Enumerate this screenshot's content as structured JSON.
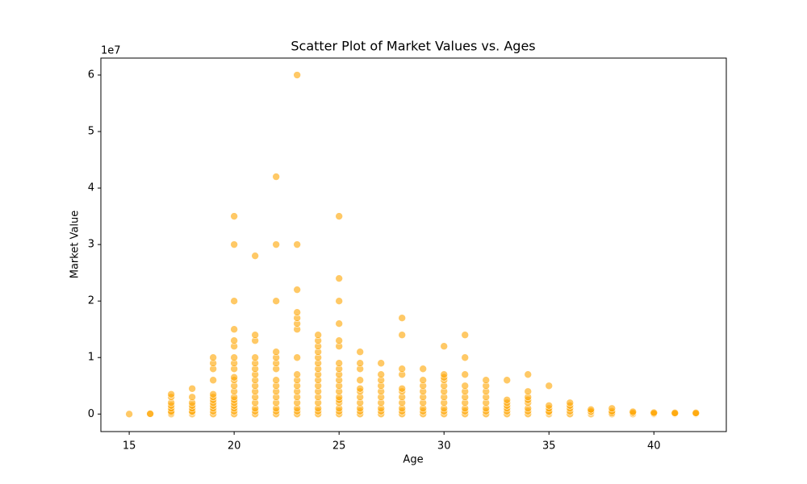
{
  "chart_data": {
    "type": "scatter",
    "title": "Scatter Plot of Market Values vs. Ages",
    "x_label": "Age",
    "y_label": "Market Value",
    "y_offset_label": "1e7",
    "color": "#FFA500",
    "xlim": [
      13.65,
      43.45
    ],
    "ylim": [
      -3100000,
      63000000
    ],
    "xticks": [
      15,
      20,
      25,
      30,
      35,
      40
    ],
    "yticks": [
      0,
      {
        "value": 10000000,
        "label": "1"
      },
      {
        "value": 20000000,
        "label": "2"
      },
      {
        "value": 30000000,
        "label": "3"
      },
      {
        "value": 40000000,
        "label": "4"
      },
      {
        "value": 50000000,
        "label": "5"
      },
      {
        "value": 60000000,
        "label": "6"
      }
    ],
    "x": [
      15,
      16,
      16,
      17,
      17,
      17,
      17,
      17,
      17,
      17,
      17,
      18,
      18,
      18,
      18,
      18,
      18,
      18,
      18,
      19,
      19,
      19,
      19,
      19,
      19,
      19,
      19,
      19,
      19,
      19,
      19,
      20,
      20,
      20,
      20,
      20,
      20,
      20,
      20,
      20,
      20,
      20,
      20,
      20,
      20,
      20,
      20,
      20,
      20,
      20,
      20,
      21,
      21,
      21,
      21,
      21,
      21,
      21,
      21,
      21,
      21,
      21,
      21,
      21,
      21,
      21,
      22,
      22,
      22,
      22,
      22,
      22,
      22,
      22,
      22,
      22,
      22,
      22,
      22,
      22,
      22,
      23,
      23,
      23,
      23,
      23,
      23,
      23,
      23,
      23,
      23,
      23,
      23,
      23,
      23,
      23,
      23,
      23,
      24,
      24,
      24,
      24,
      24,
      24,
      24,
      24,
      24,
      24,
      24,
      24,
      24,
      24,
      24,
      24,
      25,
      25,
      25,
      25,
      25,
      25,
      25,
      25,
      25,
      25,
      25,
      25,
      25,
      25,
      25,
      25,
      25,
      25,
      26,
      26,
      26,
      26,
      26,
      26,
      26,
      26,
      26,
      26,
      26,
      27,
      27,
      27,
      27,
      27,
      27,
      27,
      27,
      27,
      27,
      28,
      28,
      28,
      28,
      28,
      28,
      28,
      28,
      28,
      28,
      28,
      29,
      29,
      29,
      29,
      29,
      29,
      29,
      29,
      29,
      30,
      30,
      30,
      30,
      30,
      30,
      30,
      30,
      30,
      30,
      30,
      31,
      31,
      31,
      31,
      31,
      31,
      31,
      31,
      31,
      31,
      32,
      32,
      32,
      32,
      32,
      32,
      32,
      32,
      33,
      33,
      33,
      33,
      33,
      33,
      33,
      34,
      34,
      34,
      34,
      34,
      34,
      34,
      34,
      35,
      35,
      35,
      35,
      35,
      35,
      36,
      36,
      36,
      36,
      36,
      37,
      37,
      37,
      37,
      38,
      38,
      38,
      38,
      39,
      39,
      39,
      40,
      40,
      40,
      41,
      41,
      41,
      42,
      42,
      42
    ],
    "values": [
      0,
      0,
      50000,
      0,
      250000,
      500000,
      1000000,
      1500000,
      2000000,
      3000000,
      3500000,
      0,
      300000,
      500000,
      1000000,
      1500000,
      2000000,
      3000000,
      4500000,
      0,
      500000,
      1000000,
      1500000,
      2000000,
      2500000,
      3000000,
      3500000,
      6000000,
      8000000,
      9000000,
      10000000,
      0,
      500000,
      1000000,
      1500000,
      2000000,
      2500000,
      3000000,
      4000000,
      5000000,
      6000000,
      6500000,
      8000000,
      9000000,
      10000000,
      12000000,
      13000000,
      15000000,
      20000000,
      30000000,
      35000000,
      0,
      500000,
      1000000,
      2000000,
      3000000,
      4000000,
      5000000,
      6000000,
      7000000,
      8000000,
      9000000,
      10000000,
      13000000,
      14000000,
      28000000,
      0,
      500000,
      1000000,
      2000000,
      3000000,
      4000000,
      5000000,
      6000000,
      8000000,
      9000000,
      10000000,
      11000000,
      20000000,
      30000000,
      42000000,
      0,
      500000,
      1000000,
      2000000,
      3000000,
      4000000,
      5000000,
      6000000,
      7000000,
      10000000,
      15000000,
      16000000,
      17000000,
      18000000,
      22000000,
      30000000,
      60000000,
      0,
      500000,
      1000000,
      2000000,
      3000000,
      4000000,
      5000000,
      6000000,
      7000000,
      8000000,
      9000000,
      10000000,
      11000000,
      12000000,
      13000000,
      14000000,
      0,
      500000,
      1000000,
      2000000,
      2500000,
      3000000,
      4000000,
      5000000,
      6000000,
      7000000,
      8000000,
      9000000,
      12000000,
      13000000,
      16000000,
      20000000,
      24000000,
      35000000,
      0,
      500000,
      1000000,
      2000000,
      3000000,
      4000000,
      4500000,
      6000000,
      8000000,
      9000000,
      11000000,
      0,
      500000,
      1000000,
      2000000,
      3000000,
      4000000,
      5000000,
      6000000,
      7000000,
      9000000,
      0,
      500000,
      1000000,
      2000000,
      3000000,
      4000000,
      4500000,
      7000000,
      8000000,
      14000000,
      17000000,
      0,
      500000,
      1000000,
      2000000,
      3000000,
      4000000,
      5000000,
      6000000,
      8000000,
      0,
      500000,
      1000000,
      2000000,
      3000000,
      4000000,
      5000000,
      6000000,
      6500000,
      7000000,
      12000000,
      0,
      500000,
      1000000,
      2000000,
      3000000,
      4000000,
      5000000,
      7000000,
      10000000,
      14000000,
      0,
      500000,
      1000000,
      2000000,
      3000000,
      4000000,
      5000000,
      6000000,
      0,
      500000,
      1000000,
      1500000,
      2000000,
      2500000,
      6000000,
      0,
      500000,
      1000000,
      2000000,
      2500000,
      3000000,
      4000000,
      7000000,
      0,
      300000,
      500000,
      1000000,
      1500000,
      5000000,
      0,
      500000,
      1000000,
      1500000,
      2000000,
      0,
      300000,
      500000,
      800000,
      0,
      200000,
      500000,
      1000000,
      0,
      200000,
      400000,
      0,
      100000,
      250000,
      0,
      100000,
      200000,
      0,
      100000,
      200000
    ]
  }
}
